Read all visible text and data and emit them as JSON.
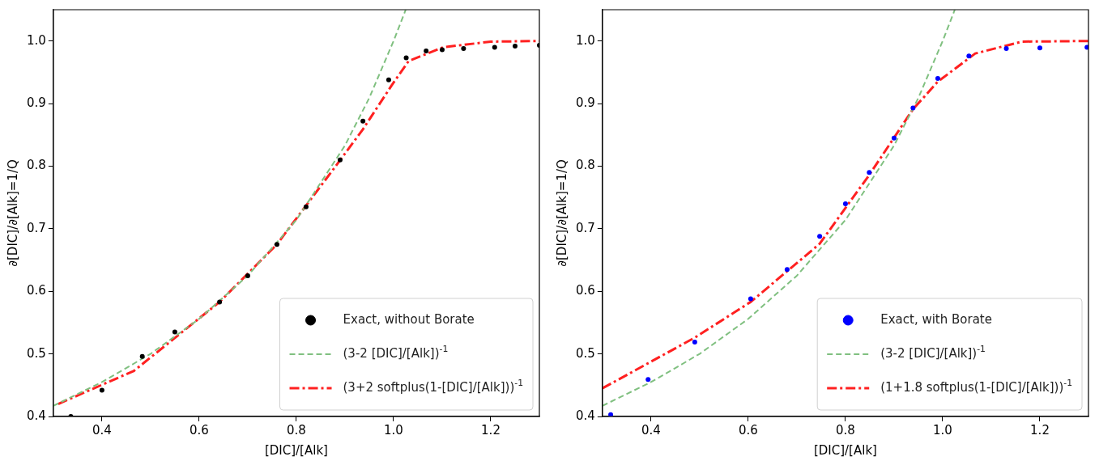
{
  "chart_data": [
    {
      "type": "scatter",
      "xlabel": "[DIC]/[Alk]",
      "ylabel": "∂[DIC]/∂[Alk]=1/Q",
      "xlim": [
        0.3,
        1.3
      ],
      "ylim": [
        0.4,
        1.05
      ],
      "xticks": [
        0.4,
        0.6,
        0.8,
        {
          "value": 1,
          "label": "1.0"
        },
        1.2
      ],
      "yticks": [
        0.4,
        0.5,
        0.6,
        0.7,
        0.8,
        0.9,
        {
          "value": 1,
          "label": "1.0"
        }
      ],
      "grid": false,
      "legend": "bottom right",
      "series": [
        {
          "name": "Exact, without Borate",
          "type": "scatter",
          "marker": "circle",
          "color": "#000000",
          "x": [
            0.336,
            0.4,
            0.483,
            0.55,
            0.642,
            0.7,
            0.76,
            0.82,
            0.89,
            0.937,
            0.99,
            1.026,
            1.067,
            1.1,
            1.144,
            1.208,
            1.25,
            1.3
          ],
          "values": [
            0.4,
            0.442,
            0.496,
            0.535,
            0.583,
            0.625,
            0.675,
            0.735,
            0.81,
            0.872,
            0.938,
            0.973,
            0.984,
            0.986,
            0.988,
            0.99,
            0.992,
            0.993
          ]
        },
        {
          "name": "(3-2 [DIC]/[Alk])$^{-1}$",
          "type": "line",
          "line_style": "dashed",
          "color": "#80c080",
          "x": [
            0.3,
            0.4,
            0.5,
            0.6,
            0.7,
            0.8,
            0.9,
            0.95,
            1.0,
            1.025
          ],
          "values": [
            0.417,
            0.455,
            0.5,
            0.556,
            0.625,
            0.714,
            0.833,
            0.909,
            1.0,
            1.05
          ]
        },
        {
          "name": "(3+2 softplus(1-[DIC]/[Alk]))$^{-1}$",
          "type": "line",
          "line_style": "dashdot",
          "color": "#ff2020",
          "x": [
            0.31,
            0.466,
            0.642,
            0.76,
            0.878,
            0.937,
            0.996,
            1.031,
            1.102,
            1.2,
            1.3
          ],
          "values": [
            0.42,
            0.473,
            0.583,
            0.675,
            0.797,
            0.859,
            0.929,
            0.968,
            0.99,
            0.999,
            1.0
          ]
        }
      ]
    },
    {
      "type": "scatter",
      "xlabel": "[DIC]/[Alk]",
      "ylabel": "∂[DIC]/∂[Alk]=1/Q",
      "xlim": [
        0.3,
        1.3
      ],
      "ylim": [
        0.4,
        1.05
      ],
      "xticks": [
        0.4,
        0.6,
        0.8,
        {
          "value": 1,
          "label": "1.0"
        },
        1.2
      ],
      "yticks": [
        0.4,
        0.5,
        0.6,
        0.7,
        0.8,
        0.9,
        {
          "value": 1,
          "label": "1.0"
        }
      ],
      "grid": false,
      "legend": "bottom right",
      "series": [
        {
          "name": "Exact, with Borate",
          "type": "scatter",
          "marker": "circle",
          "color": "#0000ff",
          "x": [
            0.317,
            0.394,
            0.49,
            0.605,
            0.68,
            0.747,
            0.8,
            0.849,
            0.9,
            0.939,
            0.99,
            1.054,
            1.131,
            1.2,
            1.297
          ],
          "values": [
            0.403,
            0.459,
            0.519,
            0.588,
            0.635,
            0.688,
            0.74,
            0.79,
            0.845,
            0.893,
            0.94,
            0.976,
            0.988,
            0.989,
            0.99
          ]
        },
        {
          "name": "(3-2 [DIC]/[Alk])$^{-1}$",
          "type": "line",
          "line_style": "dashed",
          "color": "#80c080",
          "x": [
            0.3,
            0.4,
            0.5,
            0.6,
            0.7,
            0.8,
            0.9,
            0.95,
            1.0,
            1.025
          ],
          "values": [
            0.417,
            0.455,
            0.5,
            0.556,
            0.625,
            0.714,
            0.833,
            0.909,
            1.0,
            1.05
          ]
        },
        {
          "name": "(1+1.8 softplus(1-[DIC]/[Alk]))$^{-1}$",
          "type": "line",
          "line_style": "dashdot",
          "color": "#ff2020",
          "x": [
            0.3,
            0.49,
            0.605,
            0.747,
            0.849,
            0.939,
            0.99,
            1.067,
            1.163,
            1.3
          ],
          "values": [
            0.445,
            0.526,
            0.583,
            0.676,
            0.786,
            0.891,
            0.935,
            0.98,
            0.999,
            1.0
          ]
        }
      ]
    }
  ]
}
